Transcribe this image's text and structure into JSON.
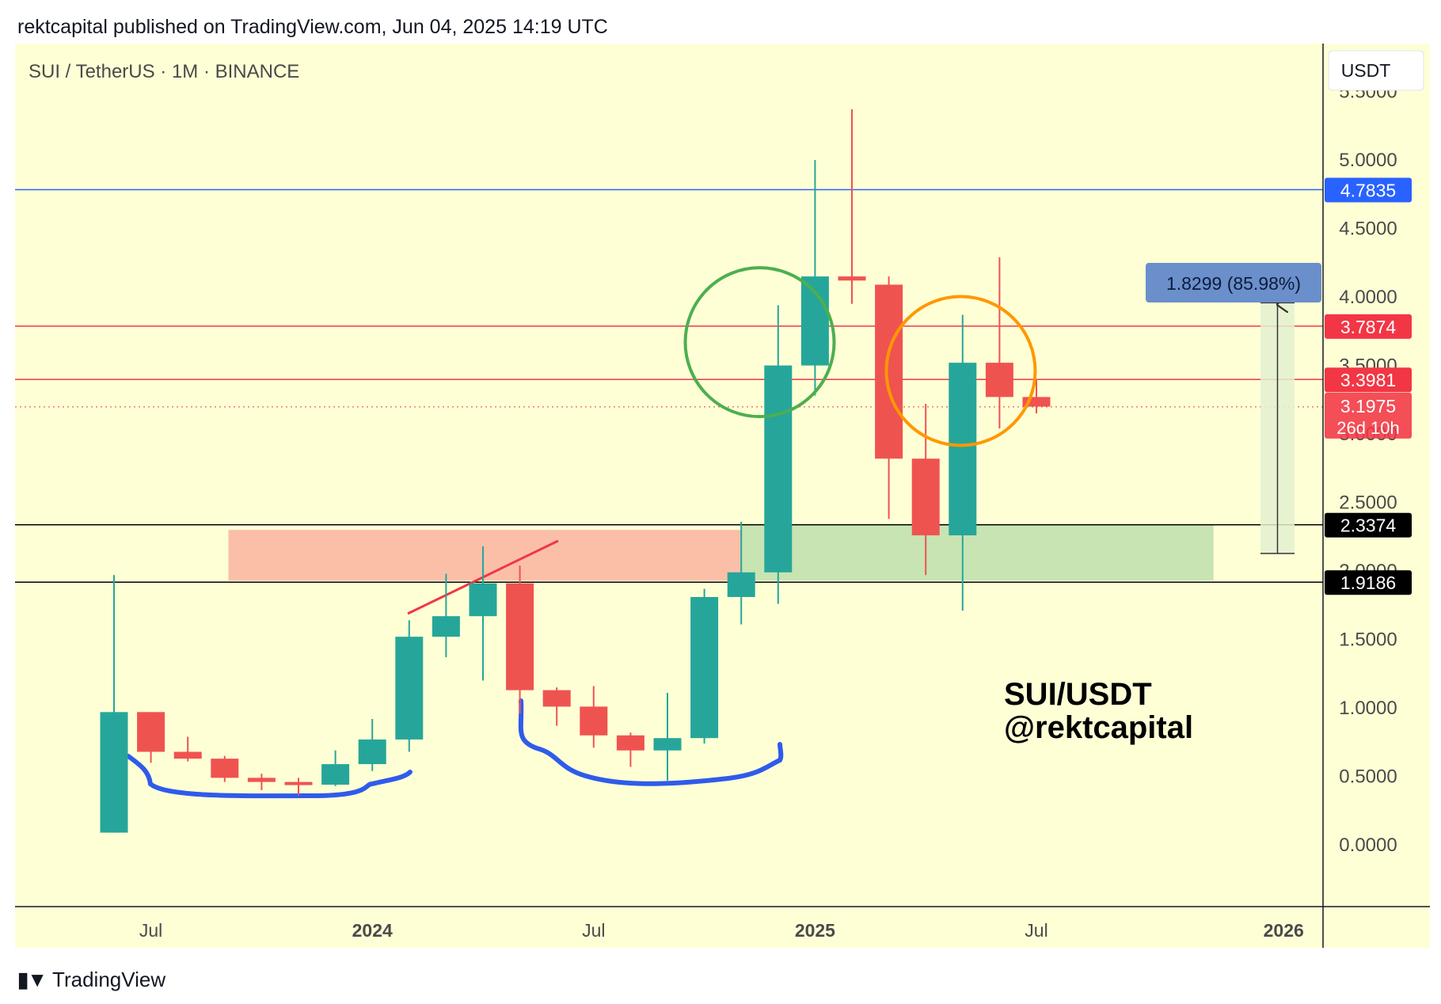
{
  "header": {
    "published": "rektcapital published on TradingView.com, Jun 04, 2025 14:19 UTC"
  },
  "footer": {
    "brand": "TradingView"
  },
  "chart_data": {
    "type": "candlestick",
    "title": "SUI / TetherUS · 1M · BINANCE",
    "currency": "USDT",
    "watermark": [
      "SUI/USDT",
      "@rektcapital"
    ],
    "y_ticks": [
      "0.0000",
      "0.5000",
      "1.0000",
      "1.5000",
      "2.0000",
      "2.5000",
      "3.0000",
      "3.5000",
      "4.0000",
      "4.5000",
      "5.0000",
      "5.5000"
    ],
    "y_tick_values": [
      0,
      0.5,
      1,
      1.5,
      2,
      2.5,
      3,
      3.5,
      4,
      4.5,
      5,
      5.5
    ],
    "ylim": [
      -0.45,
      5.85
    ],
    "x_ticks": [
      {
        "label": "Jul",
        "index": 1.0,
        "bold": false
      },
      {
        "label": "2024",
        "index": 7.0,
        "bold": true
      },
      {
        "label": "Jul",
        "index": 13.0,
        "bold": false
      },
      {
        "label": "2025",
        "index": 19.0,
        "bold": true
      },
      {
        "label": "Jul",
        "index": 25.0,
        "bold": false
      },
      {
        "label": "2026",
        "index": 31.7,
        "bold": true
      }
    ],
    "candles": [
      {
        "date": "2023-05",
        "open": 0.09,
        "high": 1.97,
        "low": 0.09,
        "close": 0.97
      },
      {
        "date": "2023-06",
        "open": 0.97,
        "high": 0.97,
        "low": 0.6,
        "close": 0.68
      },
      {
        "date": "2023-07",
        "open": 0.68,
        "high": 0.79,
        "low": 0.61,
        "close": 0.63
      },
      {
        "date": "2023-08",
        "open": 0.63,
        "high": 0.65,
        "low": 0.46,
        "close": 0.49
      },
      {
        "date": "2023-09",
        "open": 0.49,
        "high": 0.52,
        "low": 0.4,
        "close": 0.46
      },
      {
        "date": "2023-10",
        "open": 0.46,
        "high": 0.49,
        "low": 0.36,
        "close": 0.44
      },
      {
        "date": "2023-11",
        "open": 0.44,
        "high": 0.69,
        "low": 0.43,
        "close": 0.59
      },
      {
        "date": "2023-12",
        "open": 0.59,
        "high": 0.92,
        "low": 0.54,
        "close": 0.77
      },
      {
        "date": "2024-01",
        "open": 0.77,
        "high": 1.64,
        "low": 0.68,
        "close": 1.52
      },
      {
        "date": "2024-02",
        "open": 1.52,
        "high": 1.98,
        "low": 1.37,
        "close": 1.67
      },
      {
        "date": "2024-03",
        "open": 1.67,
        "high": 2.18,
        "low": 1.2,
        "close": 1.91
      },
      {
        "date": "2024-04",
        "open": 1.91,
        "high": 2.04,
        "low": 0.96,
        "close": 1.13
      },
      {
        "date": "2024-05",
        "open": 1.13,
        "high": 1.15,
        "low": 0.87,
        "close": 1.01
      },
      {
        "date": "2024-06",
        "open": 1.01,
        "high": 1.16,
        "low": 0.71,
        "close": 0.8
      },
      {
        "date": "2024-07",
        "open": 0.8,
        "high": 0.82,
        "low": 0.57,
        "close": 0.69
      },
      {
        "date": "2024-08",
        "open": 0.69,
        "high": 1.11,
        "low": 0.47,
        "close": 0.78
      },
      {
        "date": "2024-09",
        "open": 0.78,
        "high": 1.87,
        "low": 0.74,
        "close": 1.81
      },
      {
        "date": "2024-10",
        "open": 1.81,
        "high": 2.36,
        "low": 1.61,
        "close": 1.99
      },
      {
        "date": "2024-11",
        "open": 1.99,
        "high": 3.94,
        "low": 1.76,
        "close": 3.5
      },
      {
        "date": "2024-12",
        "open": 3.5,
        "high": 5.0,
        "low": 3.28,
        "close": 4.15
      },
      {
        "date": "2025-01",
        "open": 4.15,
        "high": 5.37,
        "low": 3.95,
        "close": 4.12
      },
      {
        "date": "2025-02",
        "open": 4.09,
        "high": 4.15,
        "low": 2.38,
        "close": 2.82
      },
      {
        "date": "2025-03",
        "open": 2.82,
        "high": 3.22,
        "low": 1.97,
        "close": 2.26
      },
      {
        "date": "2025-04",
        "open": 2.26,
        "high": 3.87,
        "low": 1.71,
        "close": 3.52
      },
      {
        "date": "2025-05",
        "open": 3.52,
        "high": 4.29,
        "low": 3.04,
        "close": 3.27
      },
      {
        "date": "2025-06",
        "open": 3.27,
        "high": 3.4,
        "low": 3.15,
        "close": 3.2
      }
    ],
    "horizontal_lines": [
      {
        "price": 4.7835,
        "label": "4.7835",
        "color": "#2962ff"
      },
      {
        "price": 3.7874,
        "label": "3.7874",
        "color": "#f23645"
      },
      {
        "price": 3.3981,
        "label": "3.3981",
        "color": "#f23645"
      },
      {
        "price": 2.3374,
        "label": "2.3374",
        "color": "#000000"
      },
      {
        "price": 1.9186,
        "label": "1.9186",
        "color": "#000000"
      }
    ],
    "current_price": {
      "label": "3.1975",
      "price": 3.1975,
      "countdown": "26d 10h",
      "color": "#f23645"
    },
    "measure": {
      "label": "1.8299 (85.98%)",
      "from_price": 2.1275,
      "to_price": 3.9575
    },
    "zones": [
      {
        "type": "resistance",
        "from_index": 3.1,
        "to_index": 17.0,
        "low": 1.93,
        "high": 2.3,
        "color": "#fbbfa8"
      },
      {
        "type": "support",
        "from_index": 17.0,
        "to_index": 29.8,
        "low": 1.93,
        "high": 2.34,
        "color": "#c7e4b2"
      }
    ],
    "circles": [
      {
        "center_index": 17.5,
        "center_price": 3.67,
        "color": "#4caf50"
      },
      {
        "center_index": 22.95,
        "center_price": 3.46,
        "color": "#ff9800"
      }
    ],
    "colors": {
      "up": "#26a69a",
      "down": "#ef5350",
      "background": "#ffffd6",
      "annotation_line": "#2f5bea",
      "trend_line": "#f23645"
    }
  }
}
